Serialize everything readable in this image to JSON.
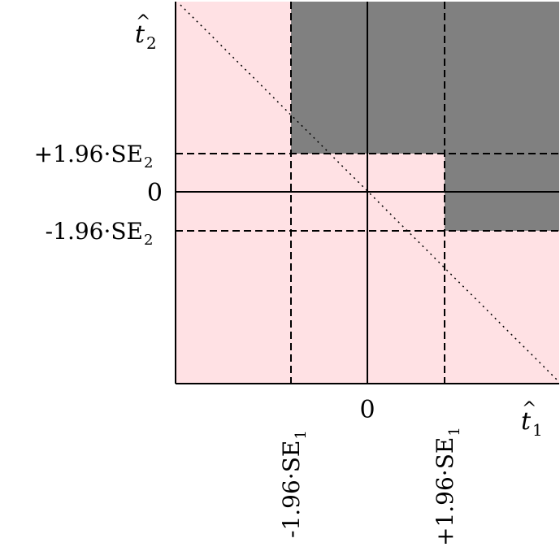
{
  "colors": {
    "background": "#ffffff",
    "accept_region": "#ffe1e4",
    "reject_region": "#808080",
    "lines": "#000000"
  },
  "axes": {
    "x_label_base": "t",
    "x_label_hat": "^",
    "x_label_sub": "1",
    "y_label_base": "t",
    "y_label_hat": "^",
    "y_label_sub": "2",
    "x_origin_label": "0",
    "y_origin_label": "0"
  },
  "thresholds": {
    "x_neg": {
      "text": "-1.96·SE",
      "sub": "1"
    },
    "x_pos": {
      "text": "+1.96·SE",
      "sub": "1"
    },
    "y_pos": {
      "text": "+1.96·SE",
      "sub": "2"
    },
    "y_neg": {
      "text": "-1.96·SE",
      "sub": "2"
    }
  }
}
